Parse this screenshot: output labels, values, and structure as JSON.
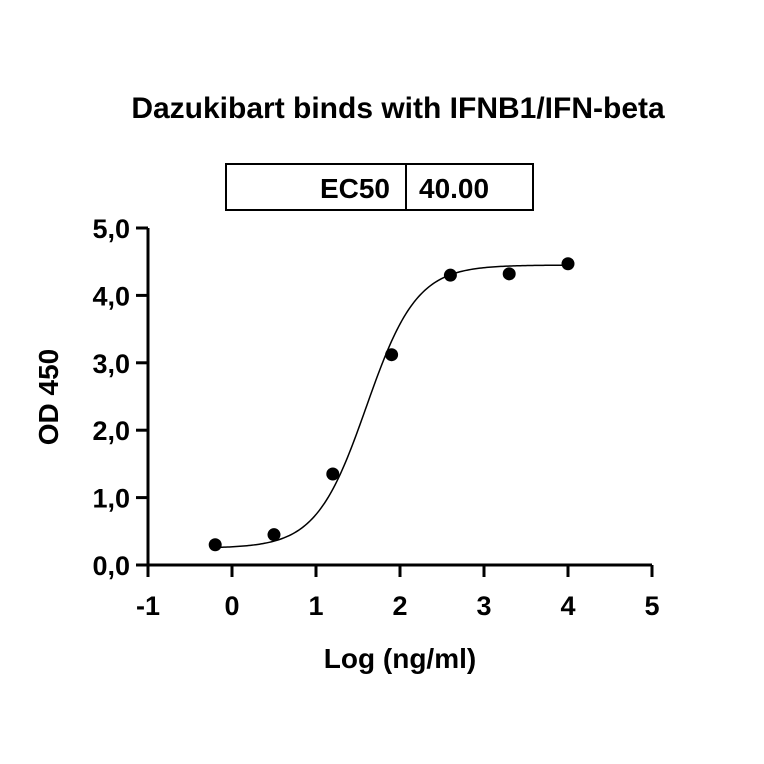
{
  "chart_data": {
    "type": "scatter",
    "title": "Dazukibart binds with IFNB1/IFN-beta",
    "xlabel": "Log (ng/ml)",
    "ylabel": "OD 450",
    "xlim": [
      -1,
      5
    ],
    "ylim": [
      0,
      5
    ],
    "x_ticks": [
      "-1",
      "0",
      "1",
      "2",
      "3",
      "4",
      "5"
    ],
    "y_ticks": [
      "0,0",
      "1,0",
      "2,0",
      "3,0",
      "4,0",
      "5,0"
    ],
    "points": [
      {
        "x": -0.2,
        "y": 0.3
      },
      {
        "x": 0.5,
        "y": 0.45
      },
      {
        "x": 1.2,
        "y": 1.35
      },
      {
        "x": 1.9,
        "y": 3.12
      },
      {
        "x": 2.6,
        "y": 4.3
      },
      {
        "x": 3.3,
        "y": 4.32
      },
      {
        "x": 4.0,
        "y": 4.47
      }
    ],
    "fit": {
      "model": "4PL",
      "bottom": 0.25,
      "top": 4.45,
      "logEC50": 1.6,
      "hill": 1.45,
      "x_range": [
        -0.2,
        4.0
      ]
    },
    "ec50_table": {
      "label": "EC50",
      "value": "40.00"
    },
    "grid": false,
    "legend": "none"
  }
}
